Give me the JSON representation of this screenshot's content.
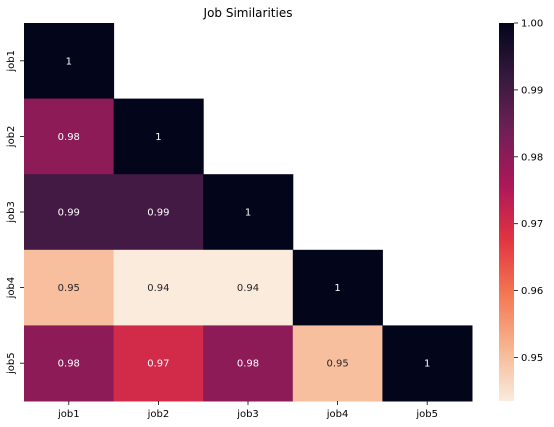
{
  "chart_data": {
    "type": "heatmap",
    "title": "Job Similarities",
    "xlabel": "",
    "ylabel": "",
    "x_categories": [
      "job1",
      "job2",
      "job3",
      "job4",
      "job5"
    ],
    "y_categories": [
      "job1",
      "job2",
      "job3",
      "job4",
      "job5"
    ],
    "mask": "upper-triangle",
    "values": [
      [
        1,
        null,
        null,
        null,
        null
      ],
      [
        0.98,
        1,
        null,
        null,
        null
      ],
      [
        0.99,
        0.99,
        1,
        null,
        null
      ],
      [
        0.95,
        0.94,
        0.94,
        1,
        null
      ],
      [
        0.98,
        0.97,
        0.98,
        0.95,
        1
      ]
    ],
    "cell_labels": [
      [
        "1",
        "",
        "",
        "",
        ""
      ],
      [
        "0.98",
        "1",
        "",
        "",
        ""
      ],
      [
        "0.99",
        "0.99",
        "1",
        "",
        ""
      ],
      [
        "0.95",
        "0.94",
        "0.94",
        "1",
        ""
      ],
      [
        "0.98",
        "0.97",
        "0.98",
        "0.95",
        "1"
      ]
    ],
    "colorbar": {
      "range": [
        0.9435,
        1.0
      ],
      "ticks": [
        0.95,
        0.96,
        0.97,
        0.98,
        0.99,
        1.0
      ],
      "tick_labels": [
        "0.95",
        "0.96",
        "0.97",
        "0.98",
        "0.99",
        "1.00"
      ],
      "colormap": "rocket_r",
      "color_stops": [
        "#faebdd",
        "#f6b48f",
        "#f37651",
        "#e13342",
        "#ad1759",
        "#701f57",
        "#35193e",
        "#03051a"
      ]
    },
    "grid": false,
    "legend": "colorbar-right"
  }
}
